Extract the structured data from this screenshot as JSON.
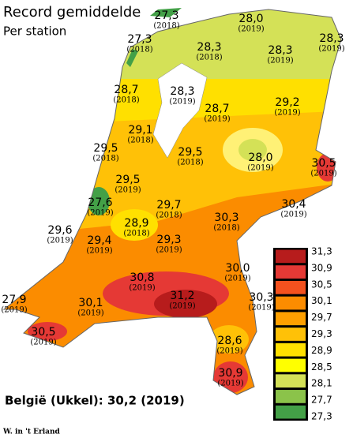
{
  "header": {
    "title": "Record gemiddelde",
    "subtitle": "Per station"
  },
  "stations": [
    {
      "label": "27,3",
      "year": "(2018)"
    },
    {
      "label": "28,0",
      "year": "(2019)"
    },
    {
      "label": "28,3",
      "year": "(2019)"
    },
    {
      "label": "27,3",
      "year": "(2018)"
    },
    {
      "label": "28,3",
      "year": "(2018)"
    },
    {
      "label": "28,3",
      "year": "(2019)"
    },
    {
      "label": "28,7",
      "year": "(2018)"
    },
    {
      "label": "28,3",
      "year": "(2019)"
    },
    {
      "label": "28,7",
      "year": "(2019)"
    },
    {
      "label": "29,2",
      "year": "(2019)"
    },
    {
      "label": "29,1",
      "year": "(2018)"
    },
    {
      "label": "29,5",
      "year": "(2018)"
    },
    {
      "label": "29,5",
      "year": "(2018)"
    },
    {
      "label": "28,0",
      "year": "(2019)"
    },
    {
      "label": "30,5",
      "year": "(2019)"
    },
    {
      "label": "29,5",
      "year": "(2019)"
    },
    {
      "label": "27,6",
      "year": "(2019)"
    },
    {
      "label": "29,7",
      "year": "(2018)"
    },
    {
      "label": "30,4",
      "year": "(2019)"
    },
    {
      "label": "28,9",
      "year": "(2018)"
    },
    {
      "label": "30,3",
      "year": "(2018)"
    },
    {
      "label": "29,6",
      "year": "(2019)"
    },
    {
      "label": "29,4",
      "year": "(2019)"
    },
    {
      "label": "29,3",
      "year": "(2019)"
    },
    {
      "label": "30,0",
      "year": "(2019)"
    },
    {
      "label": "30,8",
      "year": "(2019)"
    },
    {
      "label": "31,2",
      "year": "(2019)"
    },
    {
      "label": "30,3",
      "year": "(2019)"
    },
    {
      "label": "27,9",
      "year": "(2019)"
    },
    {
      "label": "30,1",
      "year": "(2019)"
    },
    {
      "label": "30,5",
      "year": "(2019)"
    },
    {
      "label": "28,6",
      "year": "(2019)"
    },
    {
      "label": "30,9",
      "year": "(2019)"
    }
  ],
  "legend": {
    "labels": [
      "31,3",
      "30,9",
      "30,5",
      "30,1",
      "29,7",
      "29,3",
      "28,9",
      "28,5",
      "28,1",
      "27,7",
      "27,3"
    ],
    "colors": [
      "#b71c1c",
      "#e53935",
      "#f4511e",
      "#fb8c00",
      "#ffa000",
      "#ffc107",
      "#ffe000",
      "#ffff00",
      "#d4e157",
      "#8bc34a",
      "#43a047"
    ]
  },
  "belgium_note": "België (Ukkel): 30,2 (2019)",
  "credit": "W. in 't Erland"
}
